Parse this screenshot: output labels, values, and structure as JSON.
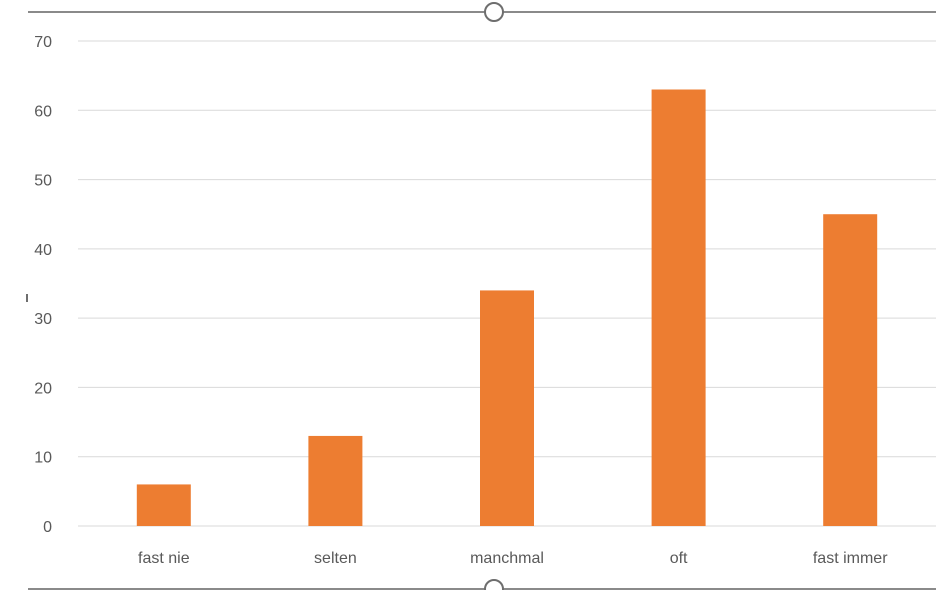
{
  "chart_data": {
    "type": "bar",
    "categories": [
      "fast nie",
      "selten",
      "manchmal",
      "oft",
      "fast immer"
    ],
    "values": [
      6,
      13,
      34,
      63,
      45
    ],
    "title": "",
    "xlabel": "",
    "ylabel": "",
    "ylim": [
      0,
      70
    ],
    "yticks": [
      "0",
      "10",
      "20",
      "30",
      "40",
      "50",
      "60",
      "70"
    ],
    "grid": true,
    "legend": "none",
    "bar_color": "#ED7D31",
    "grid_color": "#D9D9D9",
    "tick_label_color": "#595959"
  }
}
